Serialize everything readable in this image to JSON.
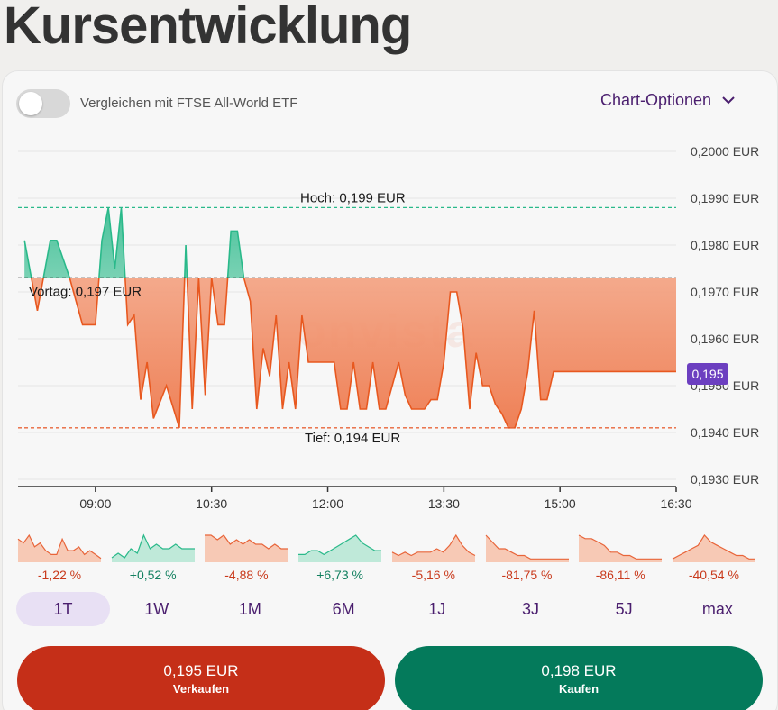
{
  "page": {
    "title": "Kursentwicklung"
  },
  "toolbar": {
    "compare_label": "Vergleichen mit FTSE All-World ETF",
    "compare_enabled": false,
    "chart_options_label": "Chart-Optionen",
    "chart_options_icon": "chevron-down-icon"
  },
  "watermark": "onvista",
  "current_price_badge": "0,195",
  "chart_data": {
    "type": "area",
    "currency": "EUR",
    "x_ticks": [
      "09:00",
      "10:30",
      "12:00",
      "13:30",
      "15:00",
      "16:30"
    ],
    "y_ticks": [
      "0,2000 EUR",
      "0,1990 EUR",
      "0,1980 EUR",
      "0,1970 EUR",
      "0,1960 EUR",
      "0,1950 EUR",
      "0,1940 EUR",
      "0,1930 EUR"
    ],
    "ylim": [
      0.193,
      0.2
    ],
    "reference_lines": {
      "high": {
        "value": 0.1988,
        "label": "Hoch: 0,199 EUR",
        "color": "#2ab98a"
      },
      "previous": {
        "value": 0.1973,
        "label": "Vortag: 0,197 EUR",
        "color": "#222222"
      },
      "low": {
        "value": 0.1941,
        "label": "Tief: 0,194 EUR",
        "color": "#e8653a"
      }
    },
    "x_range_minutes": [
      "08:00",
      "16:30"
    ],
    "series": [
      {
        "x": [
          "08:05",
          "08:15",
          "08:25",
          "08:30",
          "08:40",
          "08:50",
          "09:00",
          "09:05",
          "09:10",
          "09:15",
          "09:20",
          "09:25",
          "09:30",
          "09:35",
          "09:40",
          "09:45",
          "09:55",
          "10:05",
          "10:10",
          "10:15",
          "10:20",
          "10:25",
          "10:30",
          "10:35",
          "10:40",
          "10:45",
          "10:50",
          "10:55",
          "11:00",
          "11:05",
          "11:10",
          "11:15",
          "11:20",
          "11:25",
          "11:30",
          "11:35",
          "11:40",
          "11:45",
          "11:50",
          "12:00",
          "12:05",
          "12:10",
          "12:15",
          "12:20",
          "12:25",
          "12:30",
          "12:35",
          "12:40",
          "12:45",
          "12:50",
          "12:55",
          "13:00",
          "13:05",
          "13:10",
          "13:15",
          "13:20",
          "13:25",
          "13:30",
          "13:35",
          "13:40",
          "13:45",
          "13:50",
          "13:55",
          "14:00",
          "14:05",
          "14:10",
          "14:15",
          "14:20",
          "14:25",
          "14:30",
          "14:35",
          "14:40",
          "14:45",
          "14:50",
          "14:55",
          "15:00",
          "15:05",
          "15:10",
          "15:15",
          "15:20",
          "15:25",
          "15:30",
          "15:35",
          "15:40",
          "15:45",
          "15:50",
          "15:55",
          "16:00",
          "16:05",
          "16:10",
          "16:15",
          "16:20",
          "16:25",
          "16:30"
        ],
        "y": [
          0.1981,
          0.1966,
          0.1981,
          0.1981,
          0.1973,
          0.1963,
          0.1963,
          0.1981,
          0.1988,
          0.1975,
          0.1988,
          0.1963,
          0.1965,
          0.1947,
          0.1955,
          0.1943,
          0.195,
          0.1941,
          0.198,
          0.1945,
          0.1973,
          0.1948,
          0.1973,
          0.1963,
          0.1963,
          0.1983,
          0.1983,
          0.1973,
          0.1968,
          0.1945,
          0.1958,
          0.1952,
          0.1965,
          0.1945,
          0.1955,
          0.1945,
          0.1965,
          0.1955,
          0.1955,
          0.1955,
          0.1955,
          0.1945,
          0.1945,
          0.1955,
          0.1945,
          0.1945,
          0.1955,
          0.1945,
          0.1945,
          0.195,
          0.1955,
          0.1948,
          0.1945,
          0.1945,
          0.1945,
          0.1947,
          0.1947,
          0.1955,
          0.197,
          0.197,
          0.1962,
          0.1945,
          0.1957,
          0.195,
          0.195,
          0.1946,
          0.1944,
          0.1941,
          0.1941,
          0.1945,
          0.1953,
          0.1966,
          0.1947,
          0.1947,
          0.1953,
          0.1953,
          0.1953,
          0.1953,
          0.1953,
          0.1953,
          0.1953,
          0.1953,
          0.1953,
          0.1953,
          0.1953,
          0.1953,
          0.1953,
          0.1953,
          0.1953,
          0.1953,
          0.1953,
          0.1953,
          0.1953,
          0.1953
        ]
      }
    ]
  },
  "sparklines": [
    {
      "period": "1T",
      "change": "-1,22 %",
      "trend": "neg",
      "data": [
        6,
        5,
        7,
        4,
        5,
        3,
        2,
        2,
        6,
        3,
        3,
        4,
        2,
        3,
        2,
        1
      ]
    },
    {
      "period": "1W",
      "change": "+0,52 %",
      "trend": "pos",
      "data": [
        1,
        2,
        1,
        3,
        2,
        6,
        3,
        4,
        3,
        3,
        4,
        3,
        3,
        3
      ]
    },
    {
      "period": "1M",
      "change": "-4,88 %",
      "trend": "neg",
      "data": [
        6,
        6,
        5,
        6,
        4,
        5,
        4,
        5,
        4,
        4,
        3,
        4,
        3,
        3
      ]
    },
    {
      "period": "6M",
      "change": "+6,73 %",
      "trend": "pos",
      "data": [
        2,
        2,
        3,
        3,
        2,
        3,
        4,
        5,
        6,
        7,
        5,
        4,
        3,
        3
      ]
    },
    {
      "period": "1J",
      "change": "-5,16 %",
      "trend": "neg",
      "data": [
        3,
        2,
        3,
        2,
        3,
        3,
        3,
        4,
        3,
        5,
        8,
        5,
        3,
        2
      ]
    },
    {
      "period": "3J",
      "change": "-81,75 %",
      "trend": "neg",
      "data": [
        8,
        6,
        4,
        4,
        3,
        2,
        2,
        1,
        1,
        1,
        1,
        1,
        1,
        1
      ]
    },
    {
      "period": "5J",
      "change": "-86,11 %",
      "trend": "neg",
      "data": [
        8,
        7,
        7,
        6,
        5,
        3,
        3,
        2,
        2,
        1,
        1,
        1,
        1,
        1
      ]
    },
    {
      "period": "max",
      "change": "-40,54 %",
      "trend": "neg",
      "data": [
        1,
        2,
        3,
        4,
        5,
        8,
        6,
        5,
        4,
        3,
        2,
        2,
        1,
        1
      ]
    }
  ],
  "periods": [
    {
      "label": "1T",
      "active": true
    },
    {
      "label": "1W",
      "active": false
    },
    {
      "label": "1M",
      "active": false
    },
    {
      "label": "6M",
      "active": false
    },
    {
      "label": "1J",
      "active": false
    },
    {
      "label": "3J",
      "active": false
    },
    {
      "label": "5J",
      "active": false
    },
    {
      "label": "max",
      "active": false
    }
  ],
  "actions": {
    "sell": {
      "price": "0,195 EUR",
      "label": "Verkaufen"
    },
    "buy": {
      "price": "0,198 EUR",
      "label": "Kaufen"
    }
  },
  "colors": {
    "accent_purple": "#4a1e6e",
    "badge_purple": "#6c3fc0",
    "negative": "#e8653a",
    "positive": "#2ab98a",
    "sell": "#c52f18",
    "buy": "#047a5b"
  }
}
